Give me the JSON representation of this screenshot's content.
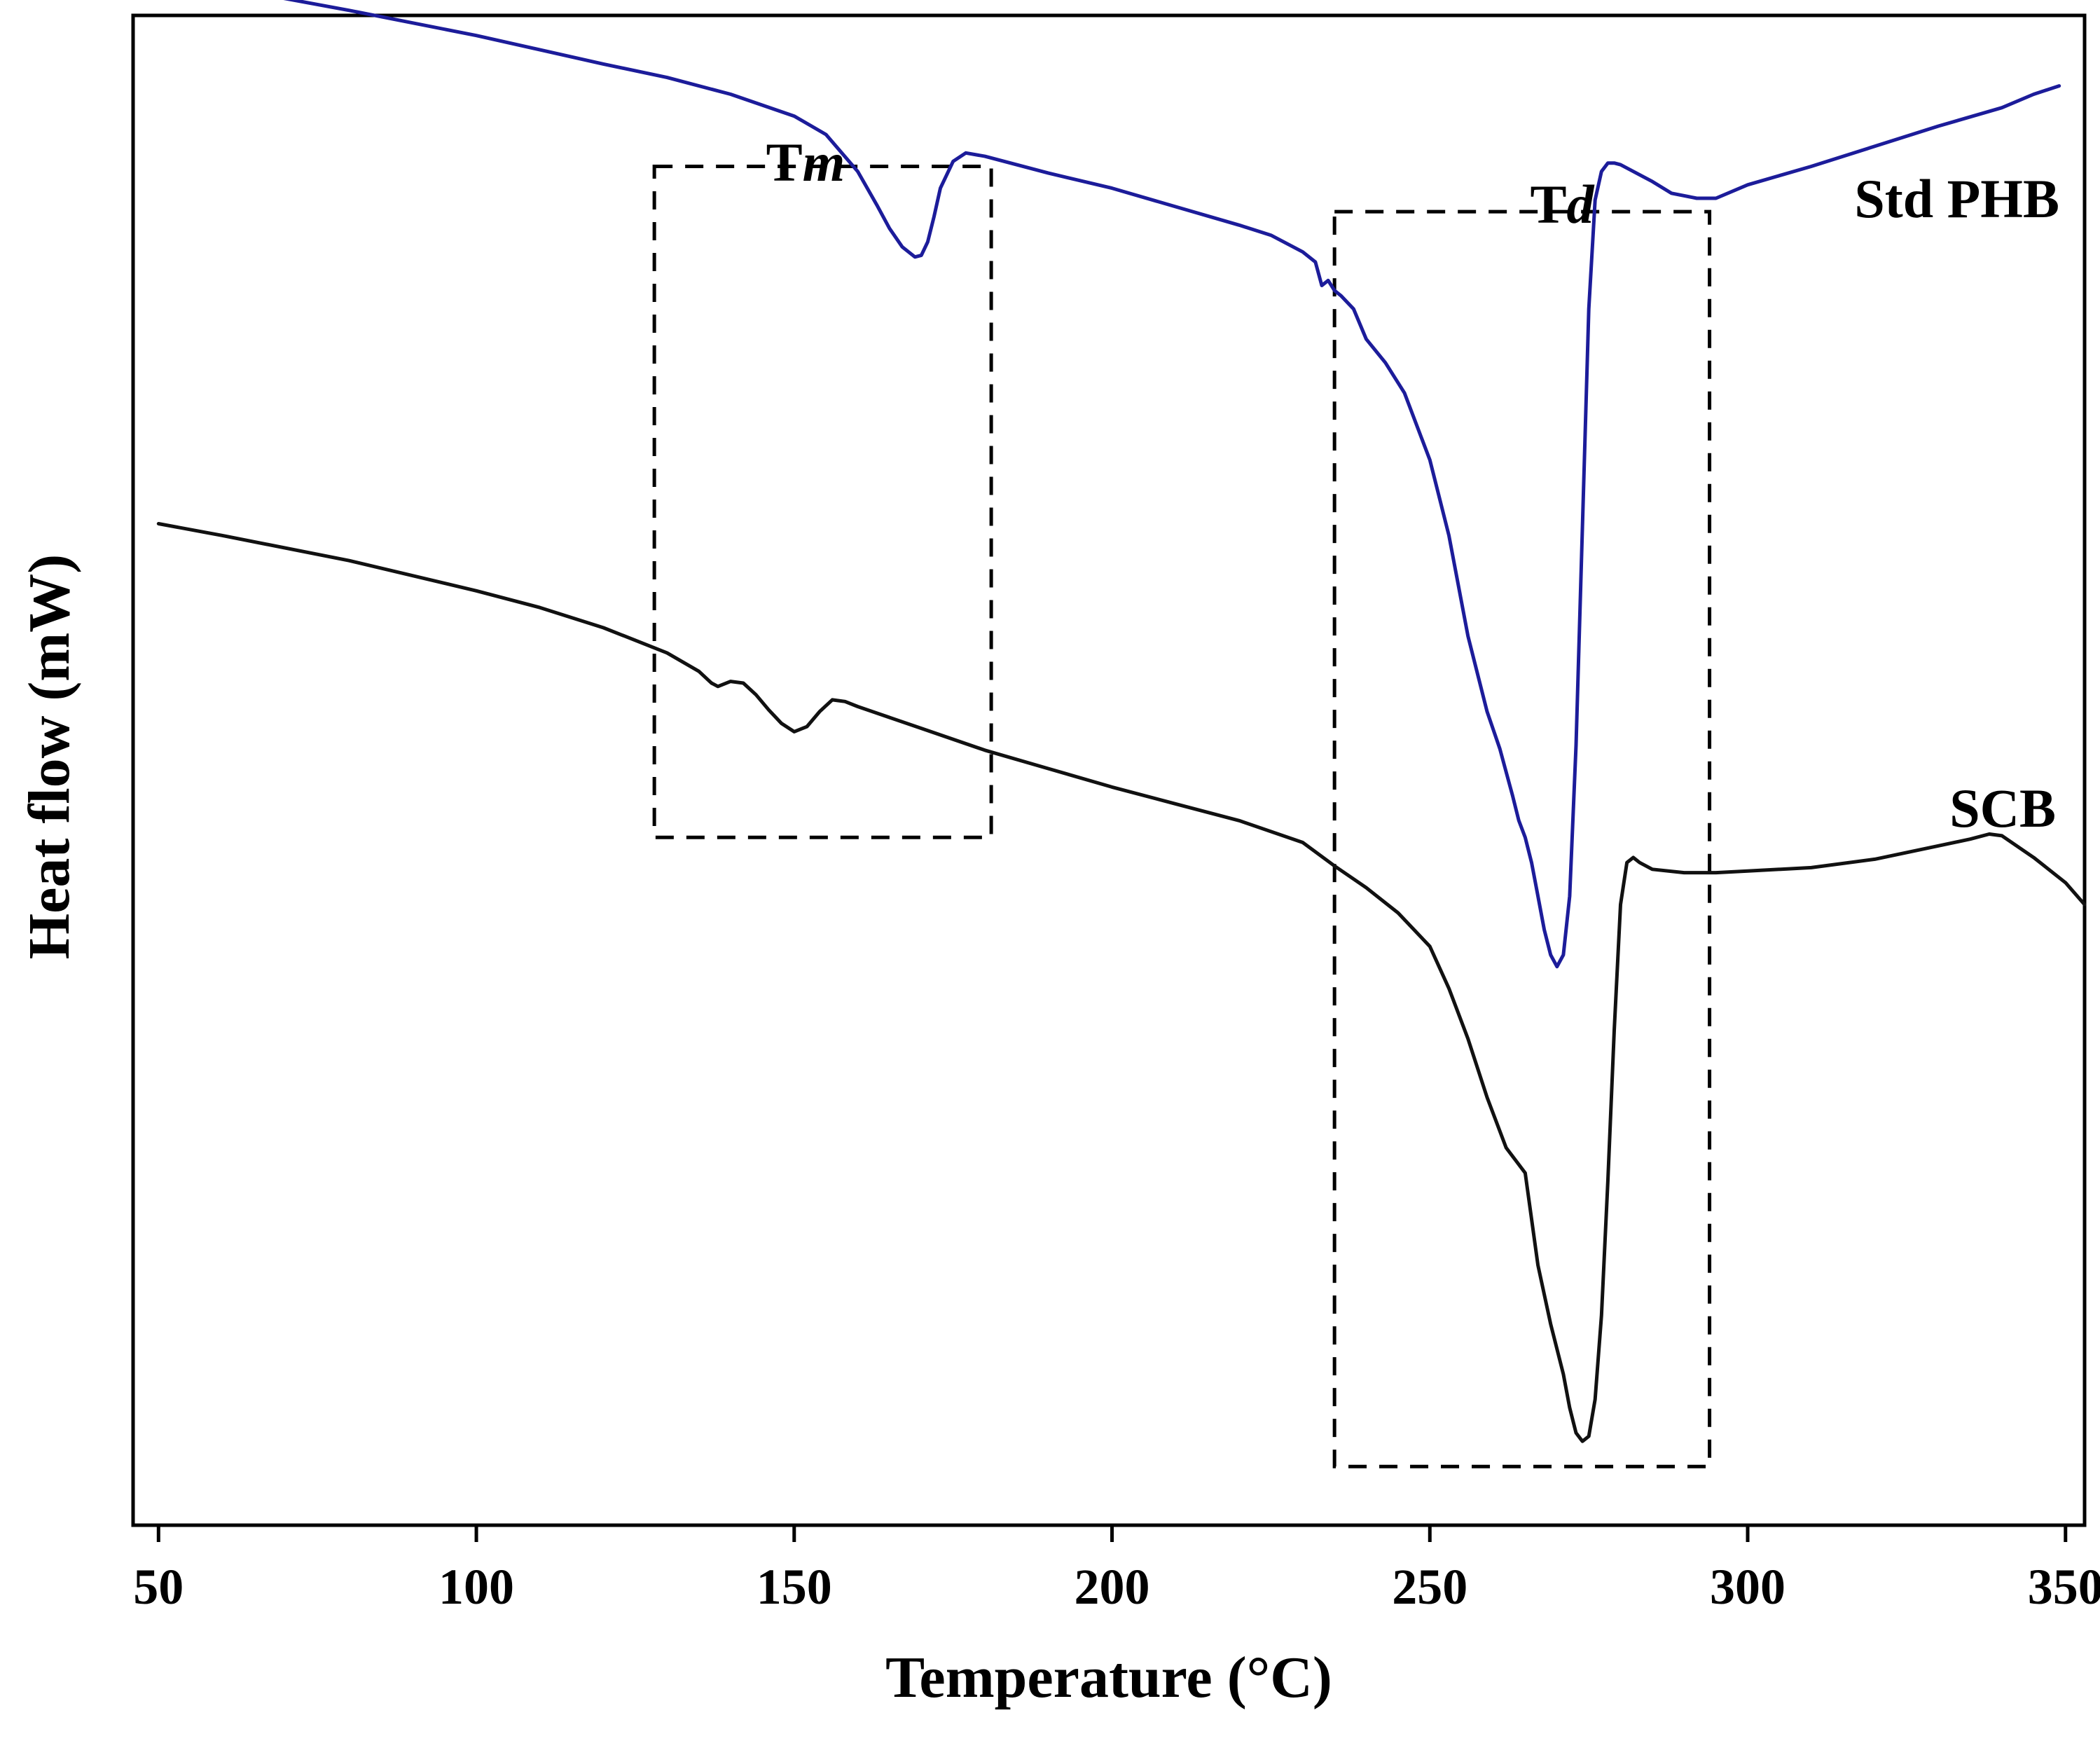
{
  "chart_data": {
    "type": "line",
    "title": "",
    "xlabel": "Temperature",
    "xlabel_unit": "(°C)",
    "ylabel": "Heat flow (mW)",
    "xlim": [
      46,
      353
    ],
    "ylim": [
      -8.25,
      0.75
    ],
    "y_ticks_shown": false,
    "grid": false,
    "x_ticks": [
      50,
      100,
      150,
      200,
      250,
      300,
      350
    ],
    "x_tick_labels": [
      "50",
      "100",
      "150",
      "200",
      "250",
      "300",
      "350"
    ],
    "annotations": [
      {
        "label": "Tm",
        "prefix": "T",
        "italic": "m",
        "region_x": [
          128,
          181
        ],
        "region_y": [
          -4.15,
          -0.15
        ]
      },
      {
        "label": "Td",
        "prefix": "T",
        "italic": "d",
        "region_x": [
          235,
          294
        ],
        "region_y": [
          -7.9,
          -0.42
        ]
      }
    ],
    "series": [
      {
        "name": "Std PHB",
        "color": "#1c1c9a",
        "x": [
          49,
          60,
          80,
          100,
          120,
          130,
          140,
          150,
          155,
          160,
          163,
          165,
          167,
          169,
          170,
          171,
          172,
          173,
          175,
          177,
          180,
          190,
          200,
          210,
          220,
          225,
          230,
          232,
          233,
          234,
          235,
          236,
          238,
          240,
          243,
          246,
          250,
          253,
          256,
          259,
          261,
          263,
          264,
          265,
          266,
          267,
          268,
          269,
          270,
          271,
          272,
          273,
          274,
          275,
          276,
          277,
          278,
          279,
          280,
          282,
          285,
          288,
          292,
          295,
          300,
          310,
          320,
          330,
          340,
          345,
          349
        ],
        "y": [
          1.0,
          0.92,
          0.78,
          0.63,
          0.46,
          0.38,
          0.28,
          0.15,
          0.04,
          -0.18,
          -0.38,
          -0.52,
          -0.63,
          -0.69,
          -0.68,
          -0.6,
          -0.45,
          -0.28,
          -0.12,
          -0.07,
          -0.09,
          -0.19,
          -0.28,
          -0.39,
          -0.5,
          -0.56,
          -0.66,
          -0.72,
          -0.86,
          -0.83,
          -0.89,
          -0.92,
          -1.0,
          -1.18,
          -1.32,
          -1.5,
          -1.9,
          -2.35,
          -2.95,
          -3.4,
          -3.62,
          -3.9,
          -4.05,
          -4.15,
          -4.3,
          -4.5,
          -4.7,
          -4.85,
          -4.92,
          -4.85,
          -4.5,
          -3.6,
          -2.3,
          -1.0,
          -0.35,
          -0.18,
          -0.13,
          -0.13,
          -0.14,
          -0.18,
          -0.24,
          -0.31,
          -0.34,
          -0.34,
          -0.26,
          -0.15,
          -0.03,
          0.09,
          0.2,
          0.28,
          0.33
        ]
      },
      {
        "name": "SCB",
        "color": "#111111",
        "x": [
          50,
          60,
          80,
          100,
          110,
          120,
          130,
          135,
          137,
          138,
          140,
          142,
          144,
          146,
          148,
          150,
          152,
          154,
          156,
          158,
          160,
          170,
          180,
          190,
          200,
          210,
          220,
          230,
          235,
          240,
          245,
          250,
          253,
          256,
          259,
          262,
          265,
          267,
          269,
          271,
          272,
          273,
          274,
          275,
          276,
          277,
          278,
          279,
          280,
          281,
          282,
          283,
          285,
          290,
          295,
          300,
          310,
          320,
          330,
          335,
          338,
          340,
          345,
          350,
          353
        ],
        "y": [
          -2.28,
          -2.35,
          -2.5,
          -2.68,
          -2.78,
          -2.9,
          -3.05,
          -3.16,
          -3.23,
          -3.25,
          -3.22,
          -3.23,
          -3.3,
          -3.39,
          -3.47,
          -3.52,
          -3.49,
          -3.4,
          -3.33,
          -3.34,
          -3.37,
          -3.5,
          -3.63,
          -3.74,
          -3.85,
          -3.95,
          -4.05,
          -4.18,
          -4.32,
          -4.45,
          -4.6,
          -4.8,
          -5.05,
          -5.35,
          -5.7,
          -6.0,
          -6.15,
          -6.7,
          -7.05,
          -7.35,
          -7.55,
          -7.7,
          -7.75,
          -7.72,
          -7.5,
          -7.0,
          -6.2,
          -5.3,
          -4.55,
          -4.3,
          -4.27,
          -4.3,
          -4.34,
          -4.36,
          -4.36,
          -4.35,
          -4.33,
          -4.28,
          -4.2,
          -4.16,
          -4.13,
          -4.14,
          -4.27,
          -4.42,
          -4.55
        ]
      }
    ]
  }
}
